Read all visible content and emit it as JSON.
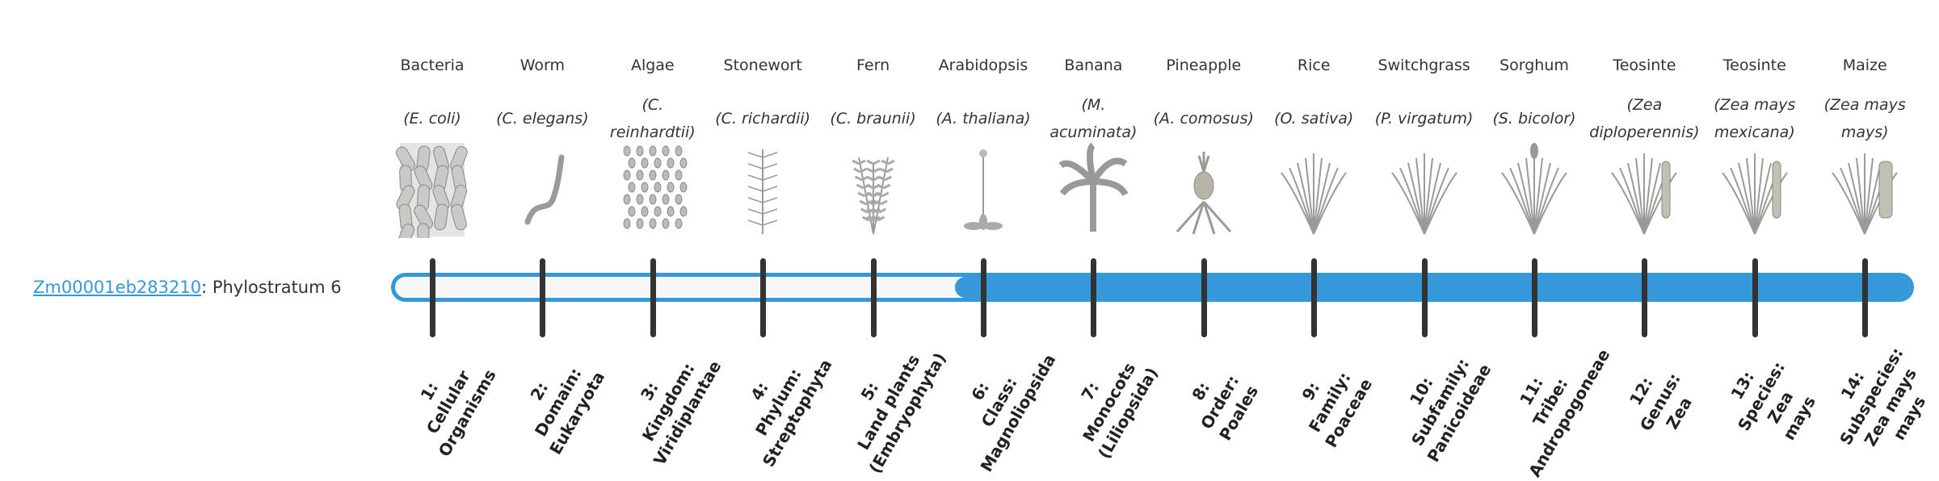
{
  "gene": {
    "id": "Zm00001eb283210",
    "suffix": ": Phylostratum 6"
  },
  "current_phylostratum": 6,
  "accent_color": "#3498db",
  "organisms": [
    {
      "name": "Bacteria",
      "sci": "(E. coli)",
      "icon": "bacteria-icon"
    },
    {
      "name": "Worm",
      "sci": "(C. elegans)",
      "icon": "worm-icon"
    },
    {
      "name": "Algae",
      "sci": "(C. reinhardtii)",
      "icon": "algae-icon"
    },
    {
      "name": "Stonewort",
      "sci": "(C. richardii)",
      "icon": "stonewort-icon"
    },
    {
      "name": "Fern",
      "sci": "(C. braunii)",
      "icon": "fern-icon"
    },
    {
      "name": "Arabidopsis",
      "sci": "(A. thaliana)",
      "icon": "arabidopsis-icon"
    },
    {
      "name": "Banana",
      "sci": "(M. acuminata)",
      "icon": "banana-icon"
    },
    {
      "name": "Pineapple",
      "sci": "(A. comosus)",
      "icon": "pineapple-icon"
    },
    {
      "name": "Rice",
      "sci": "(O. sativa)",
      "icon": "rice-icon"
    },
    {
      "name": "Switchgrass",
      "sci": "(P. virgatum)",
      "icon": "switchgrass-icon"
    },
    {
      "name": "Sorghum",
      "sci": "(S. bicolor)",
      "icon": "sorghum-icon"
    },
    {
      "name": "Teosinte",
      "sci": "(Zea diploperennis)",
      "icon": "teosinte-icon"
    },
    {
      "name": "Teosinte",
      "sci": "(Zea mays mexicana)",
      "icon": "teosinte-icon"
    },
    {
      "name": "Maize",
      "sci": "(Zea mays mays)",
      "icon": "maize-icon"
    }
  ],
  "strata": [
    {
      "lines": [
        "1:",
        "Cellular",
        "Organisms"
      ]
    },
    {
      "lines": [
        "2:",
        "Domain:",
        "Eukaryota"
      ]
    },
    {
      "lines": [
        "3:",
        "Kingdom:",
        "Viridiplantae"
      ]
    },
    {
      "lines": [
        "4:",
        "Phylum:",
        "Streptophyta"
      ]
    },
    {
      "lines": [
        "5:",
        "Land plants",
        "(Embryophyta)"
      ]
    },
    {
      "lines": [
        "6:",
        "Class:",
        "Magnoliopsida"
      ]
    },
    {
      "lines": [
        "7:",
        "Monocots",
        "(Liliopsida)"
      ]
    },
    {
      "lines": [
        "8:",
        "Order:",
        "Poales"
      ]
    },
    {
      "lines": [
        "9:",
        "Family:",
        "Poaceae"
      ]
    },
    {
      "lines": [
        "10:",
        "Subfamily:",
        "Panicoideae"
      ]
    },
    {
      "lines": [
        "11:",
        "Tribe:",
        "Andropogoneae"
      ]
    },
    {
      "lines": [
        "12:",
        "Genus:",
        "Zea"
      ]
    },
    {
      "lines": [
        "13:",
        "Species:",
        "Zea",
        "mays"
      ]
    },
    {
      "lines": [
        "14:",
        "Subspecies:",
        "Zea mays",
        "mays"
      ]
    }
  ]
}
